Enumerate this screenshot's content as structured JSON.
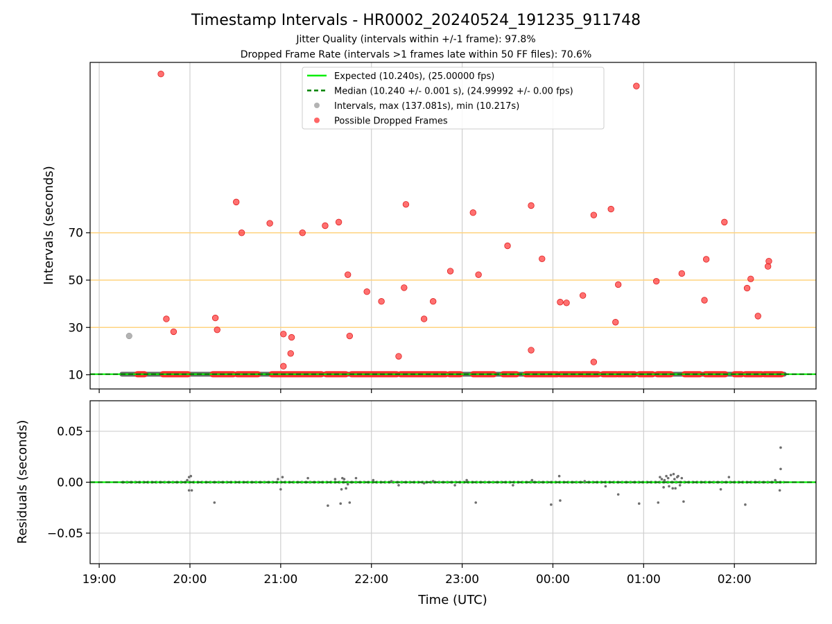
{
  "chart_data": [
    {
      "type": "scatter",
      "title": "Timestamp Intervals - HR0002_20240524_191235_911748",
      "subtitle_lines": [
        "Jitter Quality (intervals within +/-1 frame): 97.8%",
        "Dropped Frame Rate (intervals >1 frames late within 50 FF files): 70.6%"
      ],
      "ylabel": "Intervals (seconds)",
      "xlabel": "",
      "x_ticks": [
        "19:00",
        "20:00",
        "21:00",
        "22:00",
        "23:00",
        "00:00",
        "01:00",
        "02:00"
      ],
      "x_tick_hours": [
        0,
        1,
        2,
        3,
        4,
        5,
        6,
        7
      ],
      "x_range_hours": [
        -0.1,
        7.9
      ],
      "y_ticks": [
        10,
        30,
        50,
        70
      ],
      "ylim": [
        4,
        142
      ],
      "reference_lines": [
        30,
        50,
        70
      ],
      "reference_color": "#ffd37f",
      "legend_position": "top-center",
      "legend": [
        {
          "label": "Expected (10.240s), (25.00000 fps)",
          "kind": "solid-line",
          "color": "#00ee00"
        },
        {
          "label": "Median (10.240 +/- 0.001 s), (24.99992 +/- 0.00 fps)",
          "kind": "dashed-line",
          "color": "#008000"
        },
        {
          "label": "Intervals, max (137.081s), min (10.217s)",
          "kind": "marker",
          "color": "#999999"
        },
        {
          "label": "Possible Dropped Frames",
          "kind": "marker",
          "color": "#ff3333"
        }
      ],
      "expected": 10.24,
      "median": 10.24,
      "baseline_range_hours": [
        0.25,
        7.55
      ],
      "series": [
        {
          "name": "Intervals, max (137.081s), min (10.217s)",
          "color": "#999999",
          "points": [
            [
              0.33,
              26.4
            ]
          ]
        },
        {
          "name": "Possible Dropped Frames",
          "color": "#ff3333",
          "points": [
            [
              0.68,
              137.1
            ],
            [
              0.74,
              33.6
            ],
            [
              0.82,
              28.2
            ],
            [
              1.28,
              34.0
            ],
            [
              1.3,
              29.0
            ],
            [
              1.51,
              83.0
            ],
            [
              1.57,
              70.0
            ],
            [
              1.88,
              74.0
            ],
            [
              2.03,
              27.2
            ],
            [
              2.03,
              13.6
            ],
            [
              2.11,
              19.0
            ],
            [
              2.12,
              25.8
            ],
            [
              2.24,
              70.0
            ],
            [
              2.49,
              73.0
            ],
            [
              2.64,
              74.5
            ],
            [
              2.74,
              52.3
            ],
            [
              2.76,
              26.4
            ],
            [
              2.95,
              45.1
            ],
            [
              3.11,
              41.0
            ],
            [
              3.3,
              17.8
            ],
            [
              3.36,
              46.8
            ],
            [
              3.38,
              82.0
            ],
            [
              3.58,
              33.6
            ],
            [
              3.68,
              41.0
            ],
            [
              3.87,
              53.8
            ],
            [
              4.12,
              78.5
            ],
            [
              4.18,
              52.3
            ],
            [
              4.5,
              64.5
            ],
            [
              4.76,
              20.4
            ],
            [
              4.76,
              81.5
            ],
            [
              4.88,
              59.0
            ],
            [
              5.08,
              40.7
            ],
            [
              5.15,
              40.4
            ],
            [
              5.33,
              43.5
            ],
            [
              5.45,
              15.4
            ],
            [
              5.45,
              77.5
            ],
            [
              5.64,
              80.0
            ],
            [
              5.69,
              32.2
            ],
            [
              5.72,
              48.1
            ],
            [
              5.92,
              132.0
            ],
            [
              6.14,
              49.5
            ],
            [
              6.42,
              52.8
            ],
            [
              6.67,
              41.5
            ],
            [
              6.69,
              58.8
            ],
            [
              6.89,
              74.5
            ],
            [
              7.14,
              46.6
            ],
            [
              7.18,
              50.5
            ],
            [
              7.26,
              34.8
            ],
            [
              7.37,
              55.8
            ],
            [
              7.38,
              58.0
            ]
          ],
          "baseline_segments": [
            [
              0.42,
              0.5
            ],
            [
              0.7,
              0.98
            ],
            [
              1.25,
              1.48
            ],
            [
              1.52,
              1.75
            ],
            [
              1.9,
              2.45
            ],
            [
              2.5,
              2.72
            ],
            [
              2.78,
              3.28
            ],
            [
              3.32,
              3.82
            ],
            [
              3.86,
              3.98
            ],
            [
              4.12,
              4.35
            ],
            [
              4.45,
              4.6
            ],
            [
              4.7,
              5.05
            ],
            [
              5.08,
              5.3
            ],
            [
              5.32,
              5.5
            ],
            [
              5.55,
              5.7
            ],
            [
              5.72,
              5.9
            ],
            [
              5.95,
              6.1
            ],
            [
              6.15,
              6.3
            ],
            [
              6.45,
              6.62
            ],
            [
              6.68,
              6.9
            ],
            [
              7.0,
              7.08
            ],
            [
              7.12,
              7.3
            ],
            [
              7.33,
              7.52
            ]
          ]
        }
      ]
    },
    {
      "type": "scatter",
      "title": "",
      "ylabel": "Residuals (seconds)",
      "xlabel": "Time (UTC)",
      "x_ticks": [
        "19:00",
        "20:00",
        "21:00",
        "22:00",
        "23:00",
        "00:00",
        "01:00",
        "02:00"
      ],
      "x_tick_hours": [
        0,
        1,
        2,
        3,
        4,
        5,
        6,
        7
      ],
      "x_range_hours": [
        -0.1,
        7.9
      ],
      "y_ticks": [
        -0.05,
        0.0,
        0.05
      ],
      "y_tick_labels": [
        "−0.05",
        "0.00",
        "0.05"
      ],
      "ylim": [
        -0.08,
        0.08
      ],
      "grid": true,
      "zero_line_colors": [
        "#00ee00",
        "#008000"
      ],
      "point_color": "#6e6e6e",
      "baseline_range_hours": [
        0.25,
        7.55
      ],
      "points": [
        [
          0.97,
          0.002
        ],
        [
          0.99,
          -0.008
        ],
        [
          1.02,
          -0.008
        ],
        [
          0.99,
          0.005
        ],
        [
          1.01,
          0.006
        ],
        [
          1.27,
          -0.02
        ],
        [
          1.97,
          0.003
        ],
        [
          2.0,
          -0.007
        ],
        [
          2.02,
          0.005
        ],
        [
          2.3,
          0.004
        ],
        [
          2.52,
          -0.023
        ],
        [
          2.6,
          0.003
        ],
        [
          2.66,
          -0.021
        ],
        [
          2.67,
          -0.007
        ],
        [
          2.68,
          0.004
        ],
        [
          2.7,
          0.003
        ],
        [
          2.72,
          -0.006
        ],
        [
          2.74,
          -0.002
        ],
        [
          2.76,
          -0.02
        ],
        [
          2.83,
          0.004
        ],
        [
          3.02,
          0.002
        ],
        [
          3.22,
          0.001
        ],
        [
          3.3,
          -0.003
        ],
        [
          3.58,
          -0.001
        ],
        [
          3.68,
          0.001
        ],
        [
          3.92,
          -0.003
        ],
        [
          4.05,
          0.002
        ],
        [
          4.15,
          -0.02
        ],
        [
          4.56,
          -0.003
        ],
        [
          4.77,
          0.002
        ],
        [
          4.98,
          -0.022
        ],
        [
          5.07,
          0.006
        ],
        [
          5.08,
          -0.018
        ],
        [
          5.35,
          0.001
        ],
        [
          5.58,
          -0.004
        ],
        [
          5.72,
          -0.012
        ],
        [
          5.95,
          -0.021
        ],
        [
          6.16,
          -0.02
        ],
        [
          6.18,
          0.005
        ],
        [
          6.22,
          -0.005
        ],
        [
          6.25,
          0.006
        ],
        [
          6.28,
          -0.004
        ],
        [
          6.3,
          0.007
        ],
        [
          6.33,
          0.008
        ],
        [
          6.35,
          -0.006
        ],
        [
          6.37,
          0.005
        ],
        [
          6.4,
          -0.003
        ],
        [
          6.42,
          0.004
        ],
        [
          6.44,
          -0.019
        ],
        [
          6.2,
          0.003
        ],
        [
          6.23,
          0.002
        ],
        [
          6.27,
          0.004
        ],
        [
          6.32,
          -0.006
        ],
        [
          6.34,
          0.003
        ],
        [
          6.38,
          0.006
        ],
        [
          6.85,
          -0.007
        ],
        [
          6.94,
          0.005
        ],
        [
          7.12,
          -0.022
        ],
        [
          7.51,
          0.034
        ],
        [
          7.51,
          0.013
        ],
        [
          7.5,
          -0.008
        ],
        [
          7.45,
          0.002
        ]
      ]
    }
  ]
}
